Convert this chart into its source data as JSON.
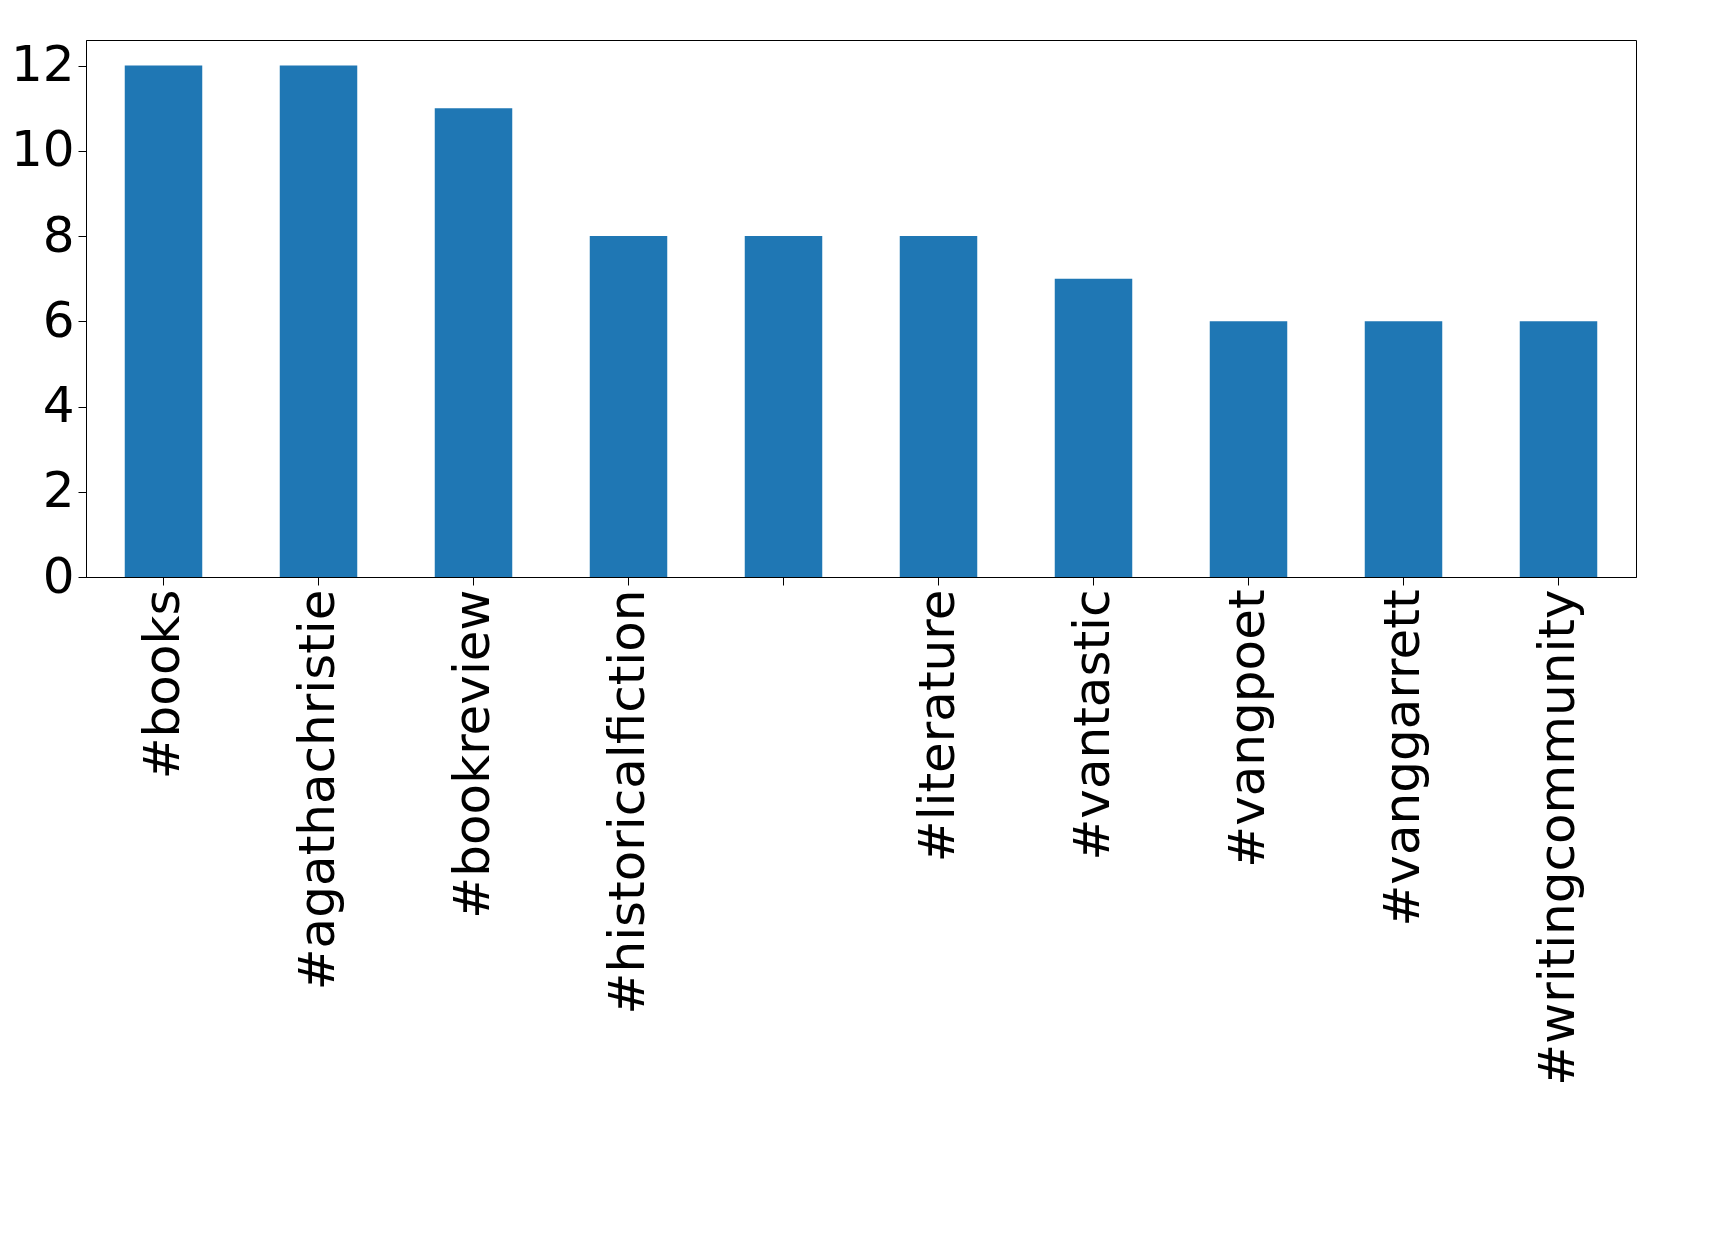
{
  "chart_data": {
    "type": "bar",
    "categories": [
      "#books",
      "#agathachristie",
      "#bookreview",
      "#historicalfiction",
      null,
      "#literature",
      "#vantastic",
      "#vangpoet",
      "#vanggarrett",
      "#writingcommunity"
    ],
    "values": [
      12,
      12,
      11,
      8,
      8,
      8,
      7,
      6,
      6,
      6
    ],
    "color": "#1f77b4",
    "ylim": [
      0,
      12.6
    ],
    "yticks": [
      0,
      2,
      4,
      6,
      8,
      10,
      12
    ],
    "grid": false
  }
}
